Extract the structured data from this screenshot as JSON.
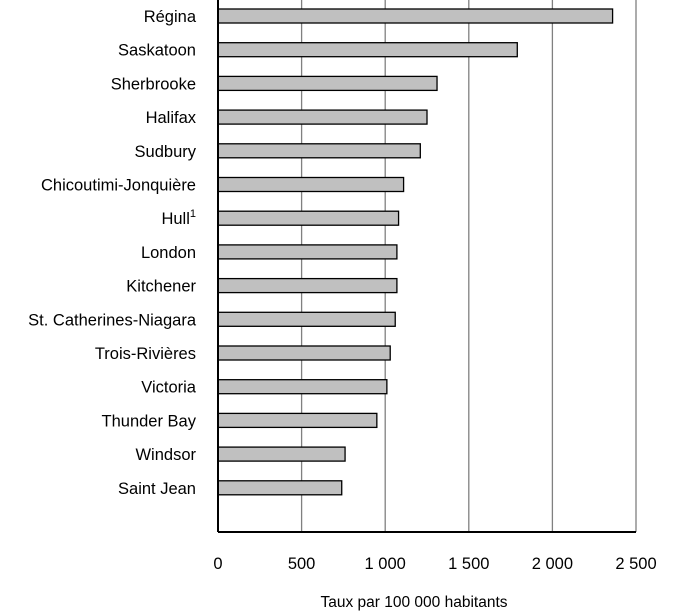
{
  "chart_data": {
    "type": "bar",
    "orientation": "horizontal",
    "categories": [
      "Régina",
      "Saskatoon",
      "Sherbrooke",
      "Halifax",
      "Sudbury",
      "Chicoutimi-Jonquière",
      "Hull",
      "London",
      "Kitchener",
      "St. Catherines-Niagara",
      "Trois-Rivières",
      "Victoria",
      "Thunder Bay",
      "Windsor",
      "Saint Jean"
    ],
    "category_superscripts": [
      "",
      "",
      "",
      "",
      "",
      "",
      "1",
      "",
      "",
      "",
      "",
      "",
      "",
      "",
      ""
    ],
    "values": [
      2360,
      1790,
      1310,
      1250,
      1210,
      1110,
      1080,
      1070,
      1070,
      1060,
      1030,
      1010,
      950,
      760,
      740
    ],
    "xlabel": "Taux par 100 000 habitants",
    "ylabel": "",
    "xlim": [
      0,
      2500
    ],
    "xticks": [
      0,
      500,
      1000,
      1500,
      2000,
      2500
    ],
    "xtick_labels": [
      "0",
      "500",
      "1 000",
      "1 500",
      "2 000",
      "2 500"
    ],
    "grid": "vertical",
    "colors": {
      "bar_fill": "#c0c0c0",
      "bar_stroke": "#000000",
      "grid": "#808080"
    }
  }
}
